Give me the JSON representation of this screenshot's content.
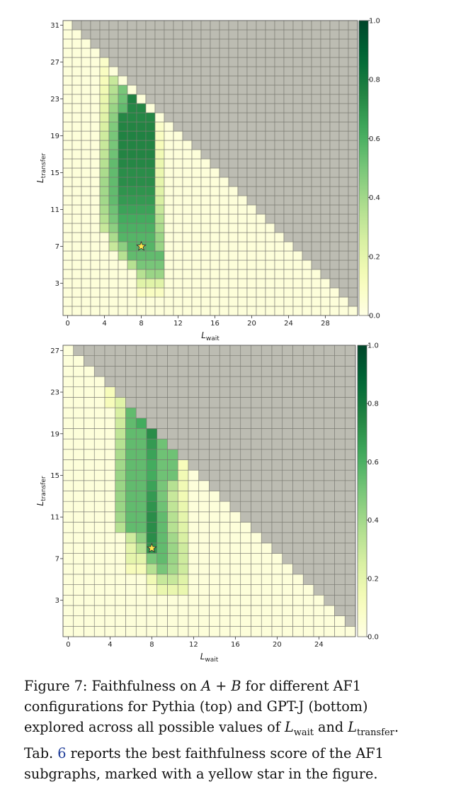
{
  "chart_data": [
    {
      "type": "heatmap",
      "model": "Pythia",
      "n": 32,
      "xlabel": {
        "main": "L",
        "sub": "wait"
      },
      "ylabel": {
        "main": "L",
        "sub": "transfer"
      },
      "xticks": [
        0,
        4,
        8,
        12,
        16,
        20,
        24,
        28
      ],
      "yticks": [
        3,
        7,
        11,
        15,
        19,
        23,
        27,
        31
      ],
      "colorbar": {
        "min": 0.0,
        "max": 1.0,
        "ticks": [
          "0.0",
          "0.2",
          "0.4",
          "0.6",
          "0.8",
          "1.0"
        ]
      },
      "best": {
        "x": 8,
        "y": 7
      },
      "band": [
        {
          "y": 1,
          "ranges": []
        },
        {
          "y": 2,
          "ranges": [
            [
              8,
              10,
              0.1
            ]
          ]
        },
        {
          "y": 3,
          "ranges": [
            [
              8,
              10,
              0.22
            ]
          ]
        },
        {
          "y": 4,
          "ranges": [
            [
              8,
              8,
              0.35
            ],
            [
              9,
              10,
              0.42
            ]
          ]
        },
        {
          "y": 5,
          "ranges": [
            [
              7,
              7,
              0.35
            ],
            [
              8,
              10,
              0.5
            ]
          ]
        },
        {
          "y": 6,
          "ranges": [
            [
              6,
              6,
              0.35
            ],
            [
              7,
              10,
              0.55
            ]
          ]
        },
        {
          "y": 7,
          "ranges": [
            [
              5,
              5,
              0.3
            ],
            [
              6,
              6,
              0.45
            ],
            [
              7,
              9,
              0.58
            ],
            [
              10,
              10,
              0.42
            ]
          ]
        },
        {
          "y": 8,
          "ranges": [
            [
              5,
              5,
              0.38
            ],
            [
              6,
              9,
              0.58
            ],
            [
              10,
              10,
              0.42
            ]
          ]
        },
        {
          "y": 9,
          "ranges": [
            [
              4,
              4,
              0.3
            ],
            [
              5,
              5,
              0.45
            ],
            [
              6,
              9,
              0.6
            ],
            [
              10,
              10,
              0.38
            ]
          ]
        },
        {
          "y": 10,
          "ranges": [
            [
              4,
              4,
              0.35
            ],
            [
              5,
              5,
              0.5
            ],
            [
              6,
              9,
              0.62
            ],
            [
              10,
              10,
              0.35
            ]
          ]
        },
        {
          "y": 11,
          "ranges": [
            [
              4,
              4,
              0.38
            ],
            [
              5,
              5,
              0.52
            ],
            [
              6,
              9,
              0.65
            ],
            [
              10,
              10,
              0.3
            ]
          ]
        },
        {
          "y": 12,
          "ranges": [
            [
              4,
              4,
              0.4
            ],
            [
              5,
              5,
              0.55
            ],
            [
              6,
              9,
              0.68
            ],
            [
              10,
              10,
              0.25
            ]
          ]
        },
        {
          "y": 13,
          "ranges": [
            [
              4,
              4,
              0.4
            ],
            [
              5,
              5,
              0.55
            ],
            [
              6,
              9,
              0.7
            ],
            [
              10,
              10,
              0.22
            ]
          ]
        },
        {
          "y": 14,
          "ranges": [
            [
              4,
              4,
              0.4
            ],
            [
              5,
              5,
              0.55
            ],
            [
              6,
              9,
              0.72
            ],
            [
              10,
              10,
              0.2
            ]
          ]
        },
        {
          "y": 15,
          "ranges": [
            [
              4,
              4,
              0.38
            ],
            [
              5,
              5,
              0.55
            ],
            [
              6,
              9,
              0.72
            ],
            [
              10,
              10,
              0.18
            ]
          ]
        },
        {
          "y": 16,
          "ranges": [
            [
              4,
              4,
              0.35
            ],
            [
              5,
              5,
              0.55
            ],
            [
              6,
              9,
              0.74
            ],
            [
              10,
              10,
              0.18
            ]
          ]
        },
        {
          "y": 17,
          "ranges": [
            [
              4,
              4,
              0.32
            ],
            [
              5,
              5,
              0.52
            ],
            [
              6,
              9,
              0.75
            ],
            [
              10,
              10,
              0.15
            ]
          ]
        },
        {
          "y": 18,
          "ranges": [
            [
              4,
              4,
              0.3
            ],
            [
              5,
              5,
              0.5
            ],
            [
              6,
              9,
              0.75
            ],
            [
              10,
              10,
              0.12
            ]
          ]
        },
        {
          "y": 19,
          "ranges": [
            [
              4,
              4,
              0.28
            ],
            [
              5,
              5,
              0.5
            ],
            [
              6,
              9,
              0.76
            ],
            [
              10,
              10,
              0.1
            ]
          ]
        },
        {
          "y": 20,
          "ranges": [
            [
              4,
              4,
              0.25
            ],
            [
              5,
              5,
              0.48
            ],
            [
              6,
              9,
              0.75
            ],
            [
              10,
              10,
              0.08
            ]
          ]
        },
        {
          "y": 21,
          "ranges": [
            [
              4,
              4,
              0.22
            ],
            [
              5,
              5,
              0.45
            ],
            [
              6,
              9,
              0.74
            ]
          ]
        },
        {
          "y": 22,
          "ranges": [
            [
              4,
              4,
              0.2
            ],
            [
              5,
              5,
              0.42
            ],
            [
              6,
              6,
              0.55
            ],
            [
              7,
              8,
              0.74
            ]
          ]
        },
        {
          "y": 23,
          "ranges": [
            [
              4,
              4,
              0.18
            ],
            [
              5,
              5,
              0.38
            ],
            [
              6,
              6,
              0.52
            ],
            [
              7,
              7,
              0.76
            ]
          ]
        },
        {
          "y": 24,
          "ranges": [
            [
              4,
              4,
              0.15
            ],
            [
              5,
              5,
              0.35
            ],
            [
              6,
              6,
              0.5
            ]
          ]
        },
        {
          "y": 25,
          "ranges": [
            [
              4,
              4,
              0.12
            ],
            [
              5,
              5,
              0.3
            ]
          ]
        },
        {
          "y": 26,
          "ranges": [
            [
              4,
              4,
              0.1
            ]
          ]
        },
        {
          "y": 27,
          "ranges": [
            [
              4,
              4,
              0.08
            ]
          ]
        }
      ]
    },
    {
      "type": "heatmap",
      "model": "GPT-J",
      "n": 28,
      "xlabel": {
        "main": "L",
        "sub": "wait"
      },
      "ylabel": {
        "main": "L",
        "sub": "transfer"
      },
      "xticks": [
        0,
        4,
        8,
        12,
        16,
        20,
        24
      ],
      "yticks": [
        3,
        7,
        11,
        15,
        19,
        23,
        27
      ],
      "colorbar": {
        "min": 0.0,
        "max": 1.0,
        "ticks": [
          "0.0",
          "0.2",
          "0.4",
          "0.6",
          "0.8",
          "1.0"
        ]
      },
      "best": {
        "x": 8,
        "y": 8
      },
      "band": [
        {
          "y": 4,
          "ranges": [
            [
              8,
              8,
              0.08
            ],
            [
              9,
              11,
              0.18
            ]
          ]
        },
        {
          "y": 5,
          "ranges": [
            [
              8,
              8,
              0.15
            ],
            [
              9,
              10,
              0.3
            ],
            [
              11,
              11,
              0.22
            ]
          ]
        },
        {
          "y": 6,
          "ranges": [
            [
              6,
              7,
              0.12
            ],
            [
              8,
              8,
              0.35
            ],
            [
              9,
              9,
              0.5
            ],
            [
              10,
              10,
              0.4
            ],
            [
              11,
              11,
              0.28
            ]
          ]
        },
        {
          "y": 7,
          "ranges": [
            [
              6,
              7,
              0.2
            ],
            [
              8,
              8,
              0.5
            ],
            [
              9,
              9,
              0.55
            ],
            [
              10,
              10,
              0.42
            ],
            [
              11,
              11,
              0.28
            ]
          ]
        },
        {
          "y": 8,
          "ranges": [
            [
              6,
              6,
              0.2
            ],
            [
              7,
              7,
              0.35
            ],
            [
              8,
              8,
              0.7
            ],
            [
              9,
              9,
              0.55
            ],
            [
              10,
              10,
              0.42
            ],
            [
              11,
              11,
              0.28
            ]
          ]
        },
        {
          "y": 9,
          "ranges": [
            [
              6,
              6,
              0.28
            ],
            [
              7,
              7,
              0.45
            ],
            [
              8,
              8,
              0.72
            ],
            [
              9,
              9,
              0.55
            ],
            [
              10,
              10,
              0.4
            ],
            [
              11,
              11,
              0.25
            ]
          ]
        },
        {
          "y": 10,
          "ranges": [
            [
              5,
              5,
              0.35
            ],
            [
              6,
              7,
              0.55
            ],
            [
              8,
              8,
              0.72
            ],
            [
              9,
              9,
              0.55
            ],
            [
              10,
              10,
              0.35
            ],
            [
              11,
              11,
              0.22
            ]
          ]
        },
        {
          "y": 11,
          "ranges": [
            [
              5,
              5,
              0.4
            ],
            [
              6,
              7,
              0.55
            ],
            [
              8,
              8,
              0.72
            ],
            [
              9,
              9,
              0.55
            ],
            [
              10,
              10,
              0.35
            ],
            [
              11,
              11,
              0.2
            ]
          ]
        },
        {
          "y": 12,
          "ranges": [
            [
              5,
              5,
              0.42
            ],
            [
              6,
              7,
              0.55
            ],
            [
              8,
              8,
              0.7
            ],
            [
              9,
              9,
              0.52
            ],
            [
              10,
              10,
              0.32
            ],
            [
              11,
              11,
              0.18
            ]
          ]
        },
        {
          "y": 13,
          "ranges": [
            [
              5,
              5,
              0.42
            ],
            [
              6,
              7,
              0.55
            ],
            [
              8,
              8,
              0.68
            ],
            [
              9,
              9,
              0.5
            ],
            [
              10,
              10,
              0.3
            ],
            [
              11,
              11,
              0.15
            ]
          ]
        },
        {
          "y": 14,
          "ranges": [
            [
              5,
              5,
              0.42
            ],
            [
              6,
              7,
              0.55
            ],
            [
              8,
              8,
              0.65
            ],
            [
              9,
              9,
              0.5
            ],
            [
              10,
              10,
              0.35
            ],
            [
              11,
              11,
              0.15
            ]
          ]
        },
        {
          "y": 15,
          "ranges": [
            [
              5,
              5,
              0.42
            ],
            [
              6,
              7,
              0.55
            ],
            [
              8,
              8,
              0.62
            ],
            [
              9,
              10,
              0.52
            ],
            [
              11,
              11,
              0.15
            ]
          ]
        },
        {
          "y": 16,
          "ranges": [
            [
              5,
              5,
              0.4
            ],
            [
              6,
              7,
              0.55
            ],
            [
              8,
              8,
              0.62
            ],
            [
              9,
              10,
              0.52
            ],
            [
              11,
              11,
              0.12
            ]
          ]
        },
        {
          "y": 17,
          "ranges": [
            [
              5,
              5,
              0.38
            ],
            [
              6,
              7,
              0.55
            ],
            [
              8,
              8,
              0.65
            ],
            [
              9,
              10,
              0.52
            ]
          ]
        },
        {
          "y": 18,
          "ranges": [
            [
              5,
              5,
              0.35
            ],
            [
              6,
              7,
              0.55
            ],
            [
              8,
              8,
              0.68
            ],
            [
              9,
              9,
              0.52
            ]
          ]
        },
        {
          "y": 19,
          "ranges": [
            [
              5,
              5,
              0.32
            ],
            [
              6,
              7,
              0.55
            ],
            [
              8,
              8,
              0.72
            ]
          ]
        },
        {
          "y": 20,
          "ranges": [
            [
              5,
              5,
              0.28
            ],
            [
              6,
              6,
              0.55
            ],
            [
              7,
              7,
              0.62
            ]
          ]
        },
        {
          "y": 21,
          "ranges": [
            [
              5,
              5,
              0.25
            ],
            [
              6,
              6,
              0.55
            ]
          ]
        },
        {
          "y": 22,
          "ranges": [
            [
              4,
              4,
              0.12
            ],
            [
              5,
              5,
              0.22
            ]
          ]
        },
        {
          "y": 23,
          "ranges": [
            [
              4,
              4,
              0.12
            ]
          ]
        },
        {
          "y": 24,
          "ranges": [
            [
              4,
              4,
              0.15
            ]
          ]
        },
        {
          "y": 25,
          "ranges": [
            [
              4,
              4,
              0.12
            ]
          ]
        }
      ]
    }
  ],
  "caption": {
    "p1": "Figure 7: Faithfulness on ",
    "m_a": "A",
    "p2": " + ",
    "m_b": "B",
    "p3": " for different AF1 configurations for Pythia (top) and GPT-J (bottom) explored across all possible values of ",
    "m_l": "L",
    "sub_wait": "wait",
    "p4": " and ",
    "sub_transfer": "transfer",
    "p5": ".  Tab. ",
    "ref": "6",
    "p6": " reports the best faithfulness score of the AF1 subgraphs, marked with a yellow star in the figure."
  }
}
